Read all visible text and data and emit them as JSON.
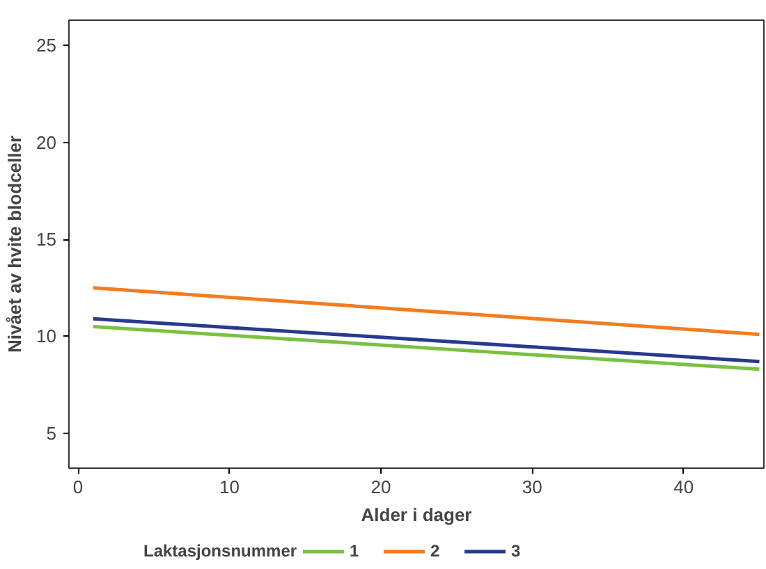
{
  "chart_data": {
    "type": "line",
    "xlabel": "Alder i dager",
    "ylabel": "Nivået av hvite blodceller",
    "legend_title": "Laktasjonsnummer",
    "legend": "bottom",
    "grid": false,
    "x": [
      1,
      45
    ],
    "xlim": [
      -0.6,
      45.3
    ],
    "xticks": [
      0,
      10,
      20,
      30,
      40
    ],
    "ylim": [
      3.2,
      26.3
    ],
    "yticks": [
      5,
      10,
      15,
      20,
      25
    ],
    "series": [
      {
        "name": "1",
        "color": "#7ac143",
        "values": [
          10.5,
          8.3
        ]
      },
      {
        "name": "2",
        "color": "#f47c20",
        "values": [
          12.5,
          10.1
        ]
      },
      {
        "name": "3",
        "color": "#283a8f",
        "values": [
          10.9,
          8.7
        ]
      }
    ]
  }
}
